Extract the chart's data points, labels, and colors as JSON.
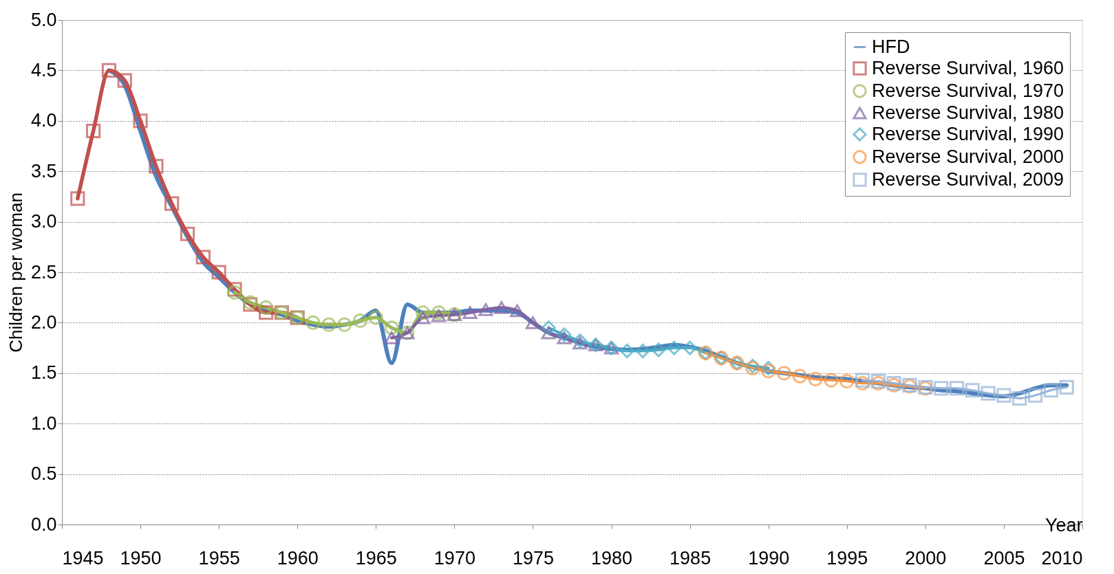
{
  "chart_data": {
    "type": "line",
    "xlabel": "Year",
    "ylabel": "Children per woman",
    "xlim": [
      1945,
      2010
    ],
    "xticks": [
      1945,
      1950,
      1955,
      1960,
      1965,
      1970,
      1975,
      1980,
      1985,
      1990,
      1995,
      2000,
      2005,
      2010
    ],
    "ylim": [
      0,
      5
    ],
    "yticks": [
      {
        "value": 0,
        "label": "0.0"
      },
      {
        "value": 0.5,
        "label": "0.5"
      },
      {
        "value": 1,
        "label": "1.0"
      },
      {
        "value": 1.5,
        "label": "1.5"
      },
      {
        "value": 2,
        "label": "2.0"
      },
      {
        "value": 2.5,
        "label": "2.5"
      },
      {
        "value": 3,
        "label": "3.0"
      },
      {
        "value": 3.5,
        "label": "3.5"
      },
      {
        "value": 4,
        "label": "4.0"
      },
      {
        "value": 4.5,
        "label": "4.5"
      },
      {
        "value": 5,
        "label": "5.0"
      }
    ],
    "grid": "y",
    "legend": "top right",
    "series": [
      {
        "name": "HFD",
        "color": "#4f81bd",
        "marker": "none",
        "x": [
          1948,
          1949,
          1950,
          1951,
          1952,
          1953,
          1954,
          1955,
          1956,
          1957,
          1958,
          1959,
          1960,
          1961,
          1962,
          1963,
          1964,
          1965,
          1966,
          1967,
          1968,
          1969,
          1970,
          1971,
          1972,
          1973,
          1974,
          1975,
          1976,
          1977,
          1978,
          1979,
          1980,
          1981,
          1982,
          1983,
          1984,
          1985,
          1986,
          1987,
          1988,
          1989,
          1990,
          1991,
          1992,
          1993,
          1994,
          1995,
          1996,
          1997,
          1998,
          1999,
          2000,
          2001,
          2002,
          2003,
          2004,
          2005,
          2006,
          2007,
          2008,
          2009
        ],
        "values": [
          4.5,
          4.35,
          3.9,
          3.45,
          3.15,
          2.85,
          2.6,
          2.45,
          2.3,
          2.18,
          2.12,
          2.08,
          2.02,
          1.98,
          1.96,
          1.98,
          2.02,
          2.12,
          1.6,
          2.18,
          2.1,
          2.1,
          2.1,
          2.12,
          2.12,
          2.12,
          2.1,
          2.0,
          1.9,
          1.85,
          1.8,
          1.76,
          1.74,
          1.73,
          1.74,
          1.76,
          1.78,
          1.76,
          1.72,
          1.66,
          1.6,
          1.56,
          1.52,
          1.5,
          1.48,
          1.46,
          1.45,
          1.44,
          1.42,
          1.4,
          1.38,
          1.36,
          1.35,
          1.33,
          1.32,
          1.3,
          1.28,
          1.27,
          1.3,
          1.35,
          1.38,
          1.38
        ]
      },
      {
        "name": "Reverse Survival, 1960",
        "color": "#c0504d",
        "marker": "square",
        "x": [
          1946,
          1947,
          1948,
          1949,
          1950,
          1951,
          1952,
          1953,
          1954,
          1955,
          1956,
          1957,
          1958,
          1959,
          1960
        ],
        "values": [
          3.23,
          3.9,
          4.5,
          4.4,
          4.0,
          3.55,
          3.18,
          2.88,
          2.65,
          2.5,
          2.33,
          2.18,
          2.1,
          2.1,
          2.05
        ]
      },
      {
        "name": "Reverse Survival, 1970",
        "color": "#9bbb59",
        "marker": "circle",
        "x": [
          1956,
          1957,
          1958,
          1959,
          1960,
          1961,
          1962,
          1963,
          1964,
          1965,
          1966,
          1967,
          1968,
          1969,
          1970
        ],
        "values": [
          2.3,
          2.2,
          2.15,
          2.1,
          2.05,
          2.0,
          1.98,
          1.98,
          2.02,
          2.05,
          1.95,
          1.9,
          2.1,
          2.1,
          2.08
        ]
      },
      {
        "name": "Reverse Survival, 1980",
        "color": "#8064a2",
        "marker": "triangle",
        "x": [
          1966,
          1967,
          1968,
          1969,
          1970,
          1971,
          1972,
          1973,
          1974,
          1975,
          1976,
          1977,
          1978,
          1979,
          1980
        ],
        "values": [
          1.85,
          1.9,
          2.05,
          2.07,
          2.08,
          2.1,
          2.13,
          2.15,
          2.12,
          2.0,
          1.9,
          1.85,
          1.8,
          1.78,
          1.75
        ]
      },
      {
        "name": "Reverse Survival, 1990",
        "color": "#4bacc6",
        "marker": "diamond",
        "x": [
          1976,
          1977,
          1978,
          1979,
          1980,
          1981,
          1982,
          1983,
          1984,
          1985,
          1986,
          1987,
          1988,
          1989,
          1990
        ],
        "values": [
          1.95,
          1.88,
          1.82,
          1.78,
          1.75,
          1.72,
          1.72,
          1.73,
          1.75,
          1.75,
          1.7,
          1.65,
          1.6,
          1.57,
          1.55
        ]
      },
      {
        "name": "Reverse Survival, 2000",
        "color": "#f79646",
        "marker": "circle",
        "x": [
          1986,
          1987,
          1988,
          1989,
          1990,
          1991,
          1992,
          1993,
          1994,
          1995,
          1996,
          1997,
          1998,
          1999,
          2000
        ],
        "values": [
          1.7,
          1.65,
          1.6,
          1.55,
          1.52,
          1.5,
          1.47,
          1.44,
          1.43,
          1.42,
          1.4,
          1.4,
          1.38,
          1.37,
          1.35
        ]
      },
      {
        "name": "Reverse Survival, 2009",
        "color": "#95b3d7",
        "marker": "square",
        "x": [
          1996,
          1997,
          1998,
          1999,
          2000,
          2001,
          2002,
          2003,
          2004,
          2005,
          2006,
          2007,
          2008,
          2009
        ],
        "values": [
          1.43,
          1.42,
          1.4,
          1.38,
          1.36,
          1.35,
          1.35,
          1.33,
          1.3,
          1.28,
          1.25,
          1.28,
          1.33,
          1.36
        ]
      }
    ]
  }
}
